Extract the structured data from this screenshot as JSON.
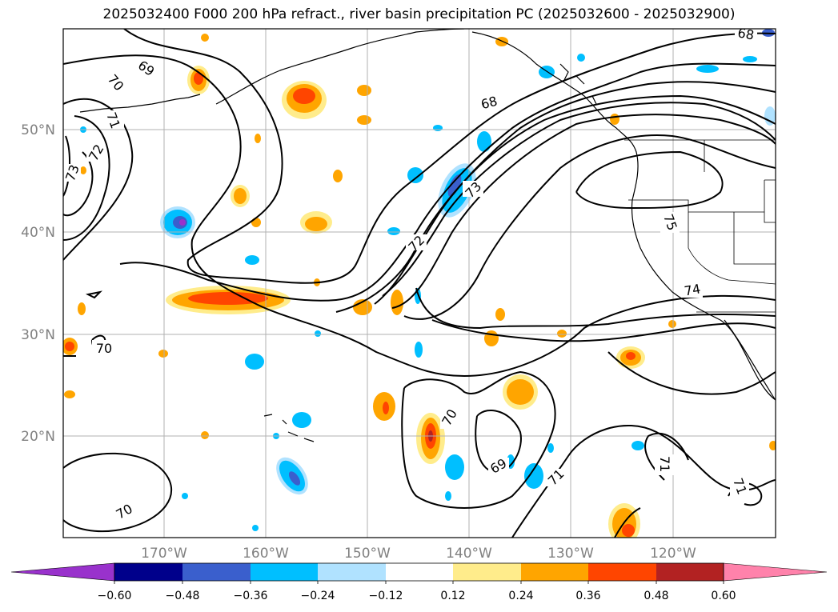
{
  "title": "2025032400 F000 200 hPa refract., river basin precipitation PC (2025032600 - 2025032900)",
  "axes": {
    "lat_labels": [
      "50°N",
      "40°N",
      "30°N",
      "20°N"
    ],
    "lon_labels": [
      "170°W",
      "160°W",
      "150°W",
      "140°W",
      "130°W",
      "120°W"
    ]
  },
  "contour_labels": [
    "69",
    "70",
    "71",
    "72",
    "73",
    "68",
    "68",
    "72",
    "73",
    "75",
    "74",
    "70",
    "70",
    "70",
    "69",
    "71",
    "71",
    "71"
  ],
  "colorbar": {
    "ticks": [
      "−0.60",
      "−0.48",
      "−0.36",
      "−0.24",
      "−0.12",
      "0.12",
      "0.24",
      "0.36",
      "0.48",
      "0.60"
    ],
    "colors": [
      "#9932cc",
      "#00008b",
      "#3a5fcd",
      "#00bfff",
      "#b0e2ff",
      "#ffffff",
      "#ffec8b",
      "#ffa500",
      "#ff4500",
      "#b22222",
      "#ff82ab"
    ]
  },
  "colors": {
    "frame": "#000000",
    "grid": "#b0b0b0",
    "contour": "#000000",
    "coast": "#000000"
  }
}
